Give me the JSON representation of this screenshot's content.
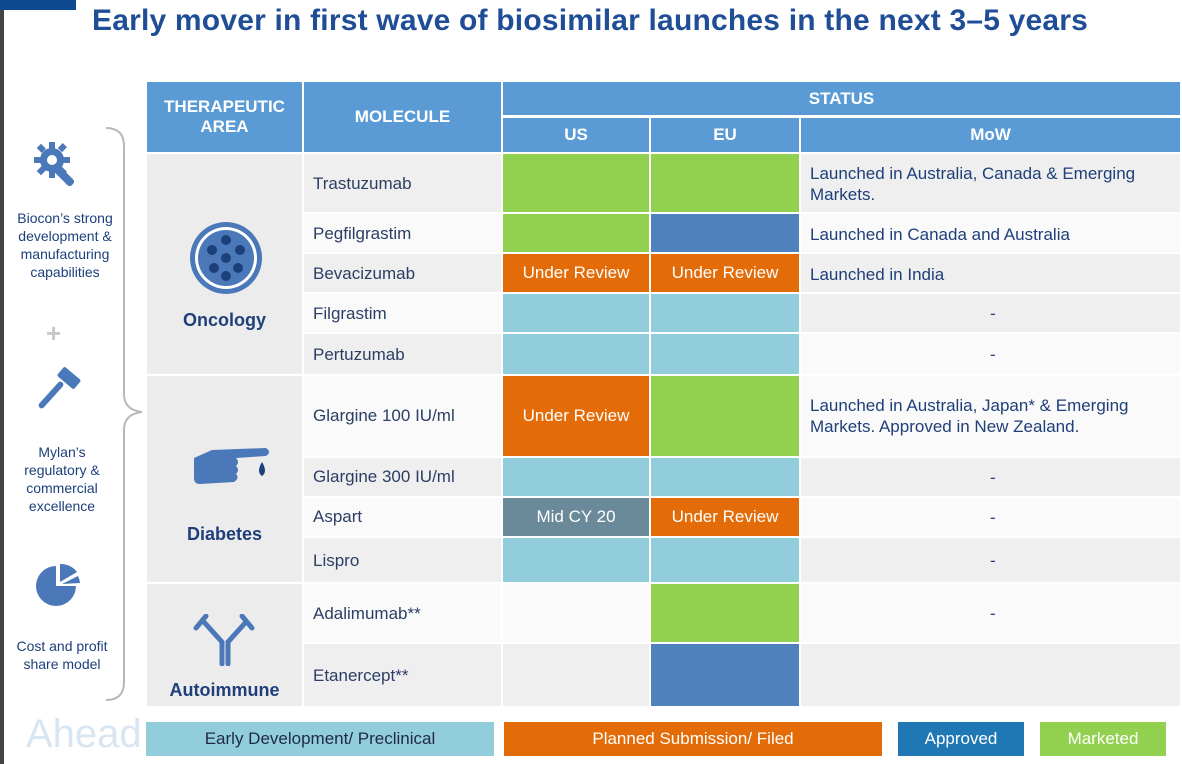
{
  "title": "Early mover in first wave of biosimilar launches in the next 3–5 years",
  "sidebar": {
    "item1": "Biocon’s strong development & manufacturing capabilities",
    "item1_lines": [
      "Biocon’s strong",
      "development &",
      "manufacturing",
      "capabilities"
    ],
    "plus": "+",
    "item2_lines": [
      "Mylan’s",
      "regulatory &",
      "commercial",
      "excellence"
    ],
    "item3_lines": [
      "Cost and profit",
      "share model"
    ]
  },
  "table": {
    "headers": {
      "area_line1": "THERAPEUTIC",
      "area_line2": "AREA",
      "molecule": "MOLECULE",
      "status": "STATUS",
      "us": "US",
      "eu": "EU",
      "mow": "MoW"
    },
    "areas": [
      "Oncology",
      "Diabetes",
      "Autoimmune"
    ],
    "rows": [
      {
        "molecule": "Trastuzumab",
        "us": "",
        "eu": "",
        "mow_lines": [
          "Launched in Australia, Canada & Emerging",
          "Markets."
        ]
      },
      {
        "molecule": "Pegfilgrastim",
        "us": "",
        "eu": "",
        "mow_lines": [
          "Launched in Canada and Australia"
        ]
      },
      {
        "molecule": "Bevacizumab",
        "us": "Under Review",
        "eu": "Under Review",
        "mow_lines": [
          "Launched in India"
        ]
      },
      {
        "molecule": "Filgrastim",
        "us": "",
        "eu": "",
        "mow_lines": [
          "-"
        ]
      },
      {
        "molecule": "Pertuzumab",
        "us": "",
        "eu": "",
        "mow_lines": [
          "-"
        ]
      },
      {
        "molecule": "Glargine 100 IU/ml",
        "us": "Under Review",
        "eu": "",
        "mow_lines": [
          "Launched in Australia, Japan* & Emerging",
          "Markets. Approved in New Zealand."
        ]
      },
      {
        "molecule": "Glargine 300 IU/ml",
        "us": "",
        "eu": "",
        "mow_lines": [
          "-"
        ]
      },
      {
        "molecule": "Aspart",
        "us": "Mid CY 20",
        "eu": "Under Review",
        "mow_lines": [
          "-"
        ]
      },
      {
        "molecule": "Lispro",
        "us": "",
        "eu": "",
        "mow_lines": [
          "-"
        ]
      },
      {
        "molecule": "Adalimumab**",
        "us": "",
        "eu": "",
        "mow_lines": [
          "-"
        ]
      },
      {
        "molecule": "Etanercept**",
        "us": "",
        "eu": "",
        "mow_lines": [
          ""
        ]
      }
    ]
  },
  "legend": {
    "early": "Early Development/ Preclinical",
    "planned": "Planned Submission/ Filed",
    "approved": "Approved",
    "marketed": "Marketed"
  },
  "colors": {
    "header": "#5b9bd5",
    "marketed": "#92d050",
    "planned": "#e36c09",
    "approved": "#4f81bd",
    "early": "#92cddc",
    "title": "#1f4e96"
  },
  "watermark": "Ahead"
}
